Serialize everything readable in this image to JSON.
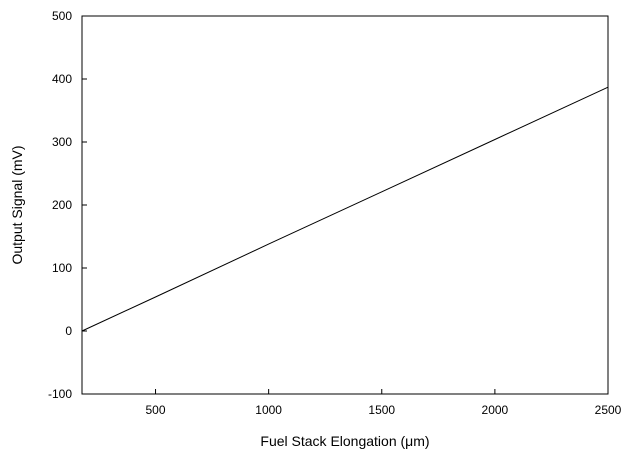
{
  "chart_data": {
    "type": "line",
    "title": "",
    "xlabel": "Fuel Stack Elongation (μm)",
    "ylabel": "Output Signal (mV)",
    "xlim": [
      175,
      2500
    ],
    "ylim": [
      -100,
      500
    ],
    "x_ticks": [
      500,
      1000,
      1500,
      2000,
      2500
    ],
    "x_tick_labels": [
      "500",
      "1000",
      "1500",
      "2000",
      "2500"
    ],
    "y_ticks": [
      -100,
      0,
      100,
      200,
      300,
      400,
      500
    ],
    "y_tick_labels": [
      "-100",
      "0",
      "100",
      "200",
      "300",
      "400",
      "500"
    ],
    "grid": false,
    "series": [
      {
        "x": [
          175,
          500,
          1000,
          1500,
          2000,
          2500
        ],
        "y": [
          0,
          54,
          138,
          221,
          304,
          387
        ],
        "color": "#000000"
      }
    ]
  }
}
